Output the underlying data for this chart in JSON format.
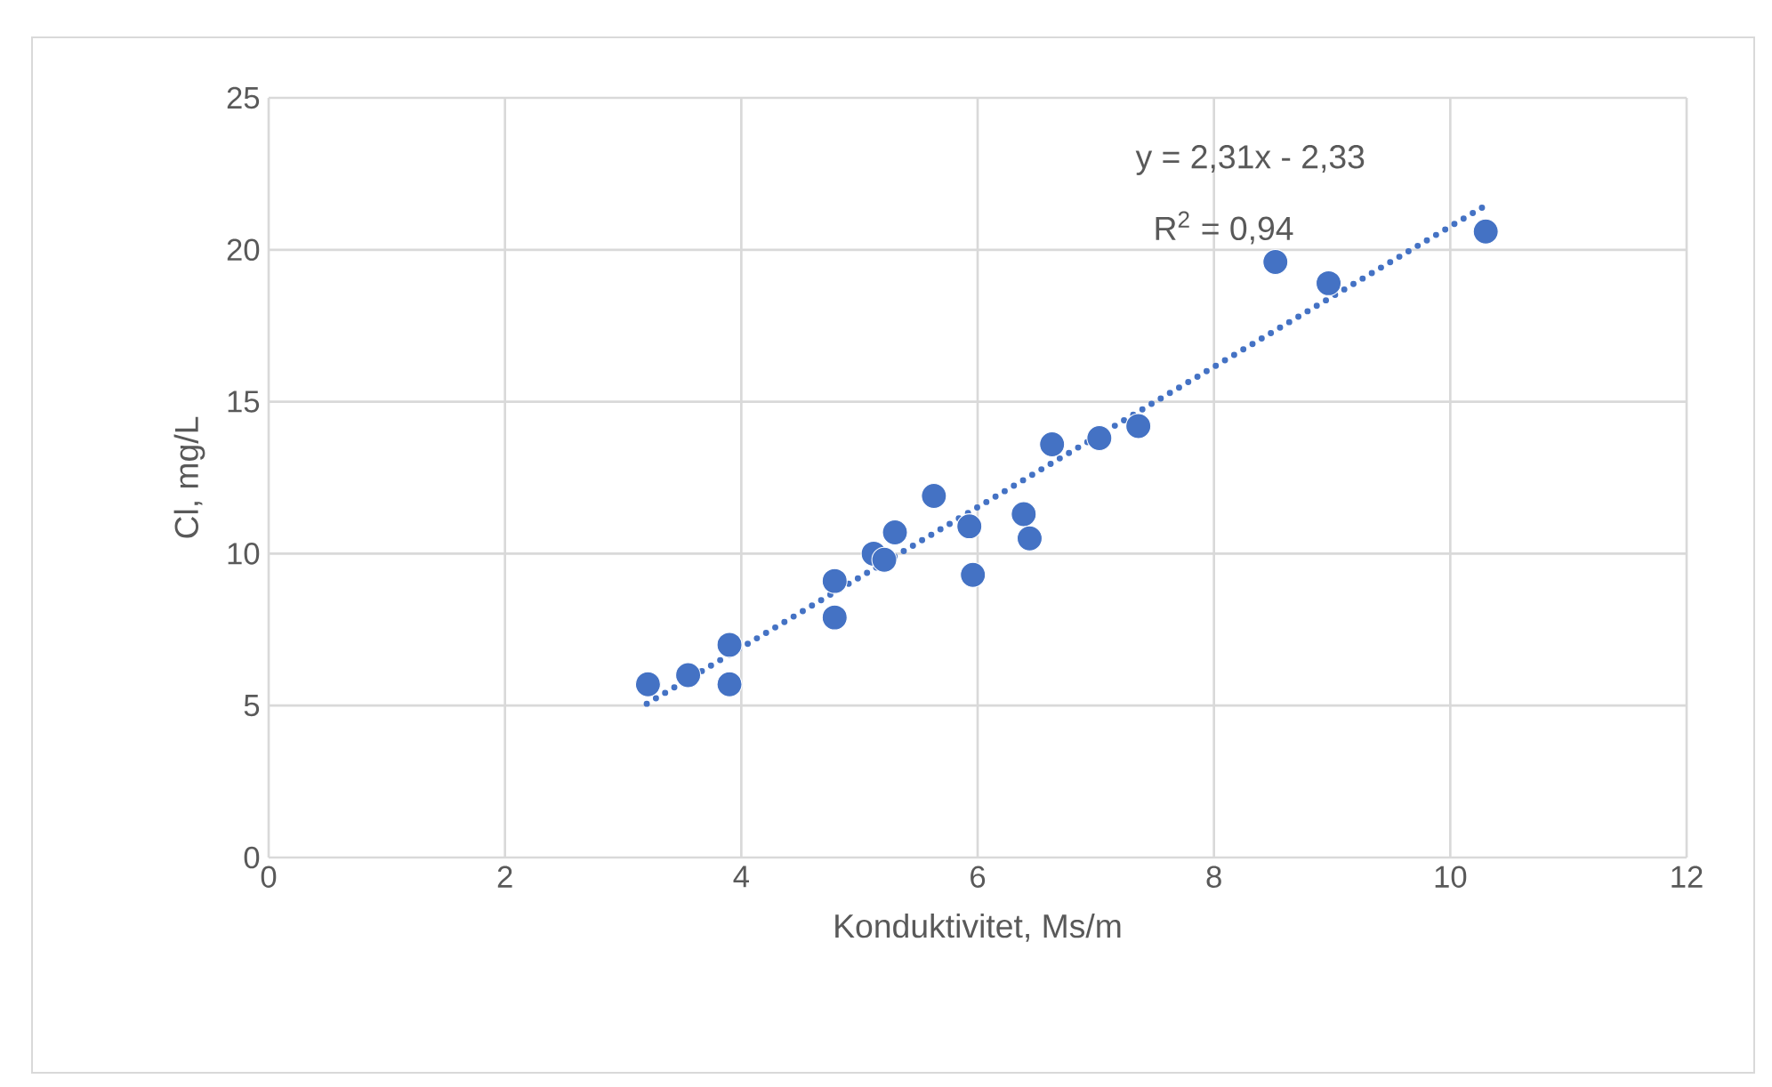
{
  "chart_data": {
    "type": "scatter",
    "xlabel": "Konduktivitet, Ms/m",
    "ylabel": "Cl, mg/L",
    "xlim": [
      0,
      12
    ],
    "xticks": [
      0,
      2,
      4,
      6,
      8,
      10,
      12
    ],
    "ylim": [
      0,
      25
    ],
    "yticks": [
      0,
      5,
      10,
      15,
      20,
      25
    ],
    "grid": true,
    "series": [
      {
        "color": "#4472c4",
        "marker": "circle",
        "x": [
          3.21,
          3.55,
          3.9,
          3.9,
          4.79,
          4.79,
          5.12,
          5.21,
          5.3,
          5.63,
          5.93,
          5.96,
          6.39,
          6.44,
          6.63,
          7.03,
          7.36,
          8.52,
          8.97,
          10.3
        ],
        "values": [
          5.7,
          6.0,
          7.0,
          5.7,
          9.1,
          7.9,
          10.0,
          9.8,
          10.7,
          11.9,
          10.9,
          9.3,
          11.3,
          10.5,
          13.6,
          13.8,
          14.2,
          19.6,
          18.9,
          20.6
        ]
      },
      {
        "type": "line",
        "color": "#4472c4",
        "line_style": "dotted",
        "x": [
          3.2,
          10.3
        ],
        "values": [
          5.06,
          21.46
        ]
      }
    ],
    "annotations": [
      "y = 2,31x - 2,33",
      "R$^{2}$ = 0,94"
    ]
  }
}
